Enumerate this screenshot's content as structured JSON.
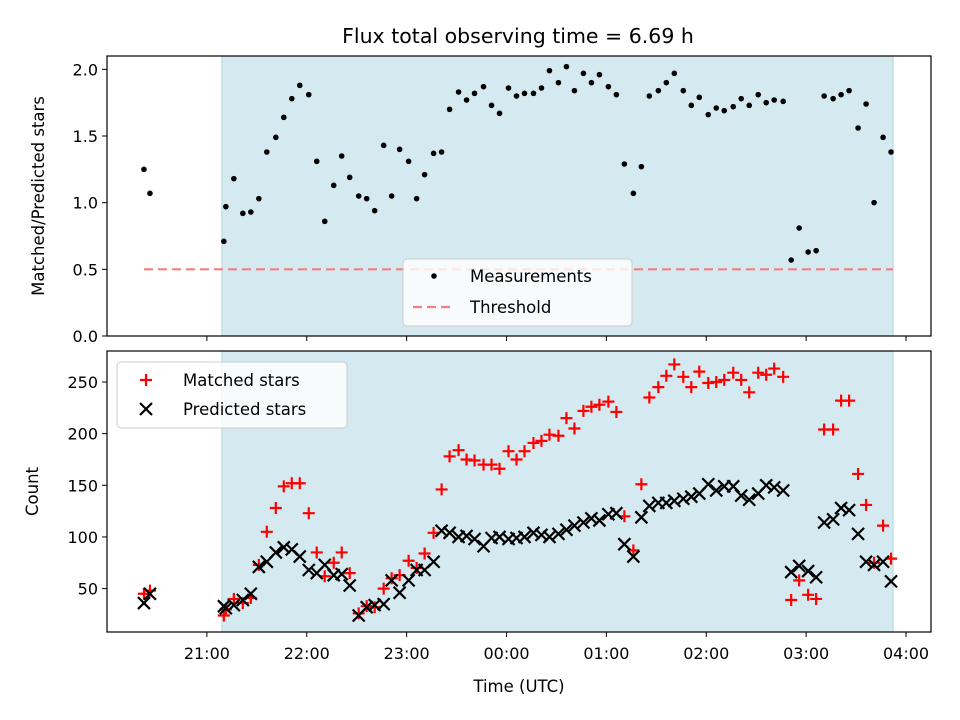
{
  "figure": {
    "title": "Flux total observing time = 6.69 h"
  },
  "chart_data": [
    {
      "type": "scatter",
      "ylabel": "Matched/Predicted stars",
      "xlim_hours": [
        20.0,
        28.25
      ],
      "ylim": [
        0,
        2.1
      ],
      "yticks": [
        0.0,
        0.5,
        1.0,
        1.5,
        2.0
      ],
      "ytick_labels": [
        "0.0",
        "0.5",
        "1.0",
        "1.5",
        "2.0"
      ],
      "shaded_span_hours": [
        21.15,
        27.87
      ],
      "shade_color": "#d4eaf0",
      "threshold": {
        "value": 0.5,
        "x_from": 20.37,
        "x_to": 27.87,
        "color": "#f08080"
      },
      "legend": {
        "position": "lower-center",
        "entries": [
          "Measurements",
          "Threshold"
        ]
      },
      "series": [
        {
          "name": "Measurements",
          "color": "#000000",
          "points": [
            [
              20.37,
              1.25
            ],
            [
              20.43,
              1.07
            ],
            [
              21.17,
              0.71
            ],
            [
              21.19,
              0.97
            ],
            [
              21.27,
              1.18
            ],
            [
              21.36,
              0.92
            ],
            [
              21.44,
              0.93
            ],
            [
              21.52,
              1.03
            ],
            [
              21.6,
              1.38
            ],
            [
              21.69,
              1.49
            ],
            [
              21.77,
              1.64
            ],
            [
              21.85,
              1.78
            ],
            [
              21.93,
              1.88
            ],
            [
              22.02,
              1.81
            ],
            [
              22.1,
              1.31
            ],
            [
              22.18,
              0.86
            ],
            [
              22.27,
              1.13
            ],
            [
              22.35,
              1.35
            ],
            [
              22.43,
              1.19
            ],
            [
              22.52,
              1.05
            ],
            [
              22.6,
              1.03
            ],
            [
              22.68,
              0.94
            ],
            [
              22.77,
              1.43
            ],
            [
              22.85,
              1.05
            ],
            [
              22.93,
              1.4
            ],
            [
              23.02,
              1.31
            ],
            [
              23.1,
              1.03
            ],
            [
              23.18,
              1.21
            ],
            [
              23.27,
              1.37
            ],
            [
              23.35,
              1.38
            ],
            [
              23.43,
              1.7
            ],
            [
              23.52,
              1.83
            ],
            [
              23.6,
              1.77
            ],
            [
              23.68,
              1.82
            ],
            [
              23.77,
              1.87
            ],
            [
              23.85,
              1.73
            ],
            [
              23.93,
              1.67
            ],
            [
              24.02,
              1.86
            ],
            [
              24.1,
              1.8
            ],
            [
              24.18,
              1.82
            ],
            [
              24.27,
              1.82
            ],
            [
              24.35,
              1.86
            ],
            [
              24.43,
              1.99
            ],
            [
              24.52,
              1.9
            ],
            [
              24.6,
              2.02
            ],
            [
              24.68,
              1.84
            ],
            [
              24.77,
              1.97
            ],
            [
              24.85,
              1.9
            ],
            [
              24.93,
              1.96
            ],
            [
              25.02,
              1.87
            ],
            [
              25.1,
              1.81
            ],
            [
              25.18,
              1.29
            ],
            [
              25.27,
              1.07
            ],
            [
              25.35,
              1.27
            ],
            [
              25.43,
              1.8
            ],
            [
              25.52,
              1.84
            ],
            [
              25.6,
              1.9
            ],
            [
              25.68,
              1.97
            ],
            [
              25.77,
              1.84
            ],
            [
              25.85,
              1.73
            ],
            [
              25.93,
              1.79
            ],
            [
              26.02,
              1.66
            ],
            [
              26.1,
              1.71
            ],
            [
              26.18,
              1.69
            ],
            [
              26.27,
              1.72
            ],
            [
              26.35,
              1.78
            ],
            [
              26.43,
              1.73
            ],
            [
              26.52,
              1.81
            ],
            [
              26.6,
              1.75
            ],
            [
              26.68,
              1.77
            ],
            [
              26.77,
              1.76
            ],
            [
              26.85,
              0.57
            ],
            [
              26.93,
              0.81
            ],
            [
              27.02,
              0.63
            ],
            [
              27.1,
              0.64
            ],
            [
              27.18,
              1.8
            ],
            [
              27.27,
              1.78
            ],
            [
              27.35,
              1.81
            ],
            [
              27.43,
              1.84
            ],
            [
              27.52,
              1.56
            ],
            [
              27.6,
              1.74
            ],
            [
              27.68,
              1.0
            ],
            [
              27.77,
              1.49
            ],
            [
              27.85,
              1.38
            ]
          ]
        }
      ]
    },
    {
      "type": "scatter",
      "xlabel": "Time (UTC)",
      "ylabel": "Count",
      "xlim_hours": [
        20.0,
        28.25
      ],
      "ylim": [
        8,
        280
      ],
      "yticks": [
        50,
        100,
        150,
        200,
        250
      ],
      "ytick_labels": [
        "50",
        "100",
        "150",
        "200",
        "250"
      ],
      "xticks_hours": [
        21,
        22,
        23,
        24,
        25,
        26,
        27,
        28
      ],
      "xtick_labels": [
        "21:00",
        "22:00",
        "23:00",
        "00:00",
        "01:00",
        "02:00",
        "03:00",
        "04:00"
      ],
      "shaded_span_hours": [
        21.15,
        27.87
      ],
      "shade_color": "#d4eaf0",
      "legend": {
        "position": "upper-left",
        "entries": [
          "Matched stars",
          "Predicted stars"
        ]
      },
      "series": [
        {
          "name": "Matched stars",
          "marker": "+",
          "color": "#ff0000",
          "points": [
            [
              20.37,
              45
            ],
            [
              20.43,
              48
            ],
            [
              21.17,
              24
            ],
            [
              21.19,
              30
            ],
            [
              21.27,
              40
            ],
            [
              21.36,
              36
            ],
            [
              21.44,
              41
            ],
            [
              21.52,
              73
            ],
            [
              21.6,
              105
            ],
            [
              21.69,
              128
            ],
            [
              21.77,
              149
            ],
            [
              21.85,
              152
            ],
            [
              21.93,
              152
            ],
            [
              22.02,
              123
            ],
            [
              22.1,
              85
            ],
            [
              22.18,
              62
            ],
            [
              22.27,
              75
            ],
            [
              22.35,
              85
            ],
            [
              22.43,
              65
            ],
            [
              22.52,
              26
            ],
            [
              22.6,
              33
            ],
            [
              22.68,
              32
            ],
            [
              22.77,
              50
            ],
            [
              22.85,
              60
            ],
            [
              22.93,
              63
            ],
            [
              23.02,
              77
            ],
            [
              23.1,
              70
            ],
            [
              23.18,
              84
            ],
            [
              23.27,
              104
            ],
            [
              23.35,
              146
            ],
            [
              23.43,
              178
            ],
            [
              23.52,
              184
            ],
            [
              23.6,
              175
            ],
            [
              23.68,
              174
            ],
            [
              23.77,
              170
            ],
            [
              23.85,
              170
            ],
            [
              23.93,
              166
            ],
            [
              24.02,
              183
            ],
            [
              24.1,
              175
            ],
            [
              24.18,
              183
            ],
            [
              24.27,
              191
            ],
            [
              24.35,
              193
            ],
            [
              24.43,
              199
            ],
            [
              24.52,
              198
            ],
            [
              24.6,
              215
            ],
            [
              24.68,
              205
            ],
            [
              24.77,
              222
            ],
            [
              24.85,
              226
            ],
            [
              24.93,
              228
            ],
            [
              25.02,
              231
            ],
            [
              25.1,
              221
            ],
            [
              25.18,
              120
            ],
            [
              25.27,
              87
            ],
            [
              25.35,
              151
            ],
            [
              25.43,
              235
            ],
            [
              25.52,
              245
            ],
            [
              25.6,
              256
            ],
            [
              25.68,
              267
            ],
            [
              25.77,
              255
            ],
            [
              25.85,
              245
            ],
            [
              25.93,
              260
            ],
            [
              26.02,
              249
            ],
            [
              26.1,
              250
            ],
            [
              26.18,
              252
            ],
            [
              26.27,
              259
            ],
            [
              26.35,
              252
            ],
            [
              26.43,
              240
            ],
            [
              26.52,
              259
            ],
            [
              26.6,
              257
            ],
            [
              26.68,
              263
            ],
            [
              26.77,
              255
            ],
            [
              26.85,
              39
            ],
            [
              26.93,
              58
            ],
            [
              27.02,
              44
            ],
            [
              27.1,
              40
            ],
            [
              27.18,
              204
            ],
            [
              27.27,
              204
            ],
            [
              27.35,
              232
            ],
            [
              27.43,
              232
            ],
            [
              27.52,
              161
            ],
            [
              27.6,
              131
            ],
            [
              27.68,
              75
            ],
            [
              27.77,
              111
            ],
            [
              27.85,
              79
            ]
          ]
        },
        {
          "name": "Predicted stars",
          "marker": "x",
          "color": "#000000",
          "points": [
            [
              20.37,
              36
            ],
            [
              20.43,
              45
            ],
            [
              21.17,
              33
            ],
            [
              21.19,
              31
            ],
            [
              21.27,
              34
            ],
            [
              21.36,
              39
            ],
            [
              21.44,
              45
            ],
            [
              21.52,
              71
            ],
            [
              21.6,
              76
            ],
            [
              21.69,
              85
            ],
            [
              21.77,
              90
            ],
            [
              21.85,
              88
            ],
            [
              21.93,
              81
            ],
            [
              22.02,
              68
            ],
            [
              22.1,
              65
            ],
            [
              22.18,
              73
            ],
            [
              22.27,
              63
            ],
            [
              22.35,
              64
            ],
            [
              22.43,
              53
            ],
            [
              22.52,
              24
            ],
            [
              22.6,
              32
            ],
            [
              22.68,
              34
            ],
            [
              22.77,
              35
            ],
            [
              22.85,
              58
            ],
            [
              22.93,
              46
            ],
            [
              23.02,
              58
            ],
            [
              23.1,
              68
            ],
            [
              23.18,
              68
            ],
            [
              23.27,
              76
            ],
            [
              23.35,
              106
            ],
            [
              23.43,
              104
            ],
            [
              23.52,
              100
            ],
            [
              23.6,
              101
            ],
            [
              23.68,
              98
            ],
            [
              23.77,
              91
            ],
            [
              23.85,
              99
            ],
            [
              23.93,
              100
            ],
            [
              24.02,
              98
            ],
            [
              24.1,
              99
            ],
            [
              24.18,
              100
            ],
            [
              24.27,
              104
            ],
            [
              24.35,
              102
            ],
            [
              24.43,
              100
            ],
            [
              24.52,
              103
            ],
            [
              24.6,
              107
            ],
            [
              24.68,
              111
            ],
            [
              24.77,
              114
            ],
            [
              24.85,
              118
            ],
            [
              24.93,
              116
            ],
            [
              25.02,
              122
            ],
            [
              25.1,
              123
            ],
            [
              25.18,
              93
            ],
            [
              25.27,
              81
            ],
            [
              25.35,
              119
            ],
            [
              25.43,
              130
            ],
            [
              25.52,
              133
            ],
            [
              25.6,
              133
            ],
            [
              25.68,
              135
            ],
            [
              25.77,
              137
            ],
            [
              25.85,
              139
            ],
            [
              25.93,
              142
            ],
            [
              26.02,
              151
            ],
            [
              26.1,
              145
            ],
            [
              26.18,
              149
            ],
            [
              26.27,
              149
            ],
            [
              26.35,
              140
            ],
            [
              26.43,
              136
            ],
            [
              26.52,
              142
            ],
            [
              26.6,
              150
            ],
            [
              26.68,
              148
            ],
            [
              26.77,
              145
            ],
            [
              26.85,
              66
            ],
            [
              26.93,
              72
            ],
            [
              27.02,
              67
            ],
            [
              27.1,
              61
            ],
            [
              27.18,
              114
            ],
            [
              27.27,
              117
            ],
            [
              27.35,
              128
            ],
            [
              27.43,
              126
            ],
            [
              27.52,
              103
            ],
            [
              27.6,
              76
            ],
            [
              27.68,
              73
            ],
            [
              27.77,
              76
            ],
            [
              27.85,
              57
            ]
          ]
        }
      ]
    }
  ]
}
